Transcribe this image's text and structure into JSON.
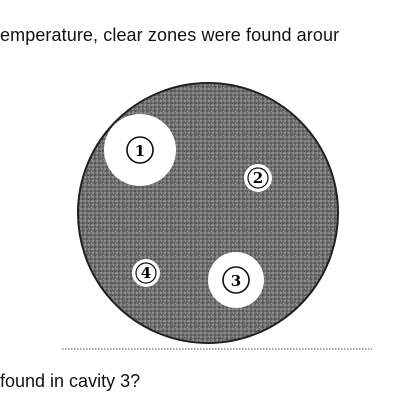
{
  "question": {
    "intro_fragment": "emperature, clear zones were found arour",
    "prompt_fragment": "found in cavity 3?"
  },
  "figure": {
    "cavities": [
      {
        "label": "1"
      },
      {
        "label": "2"
      },
      {
        "label": "3"
      },
      {
        "label": "4"
      }
    ]
  },
  "colors": {
    "plate": "#6e6e6e",
    "clear_zone": "#ffffff",
    "outline": "#111111"
  }
}
